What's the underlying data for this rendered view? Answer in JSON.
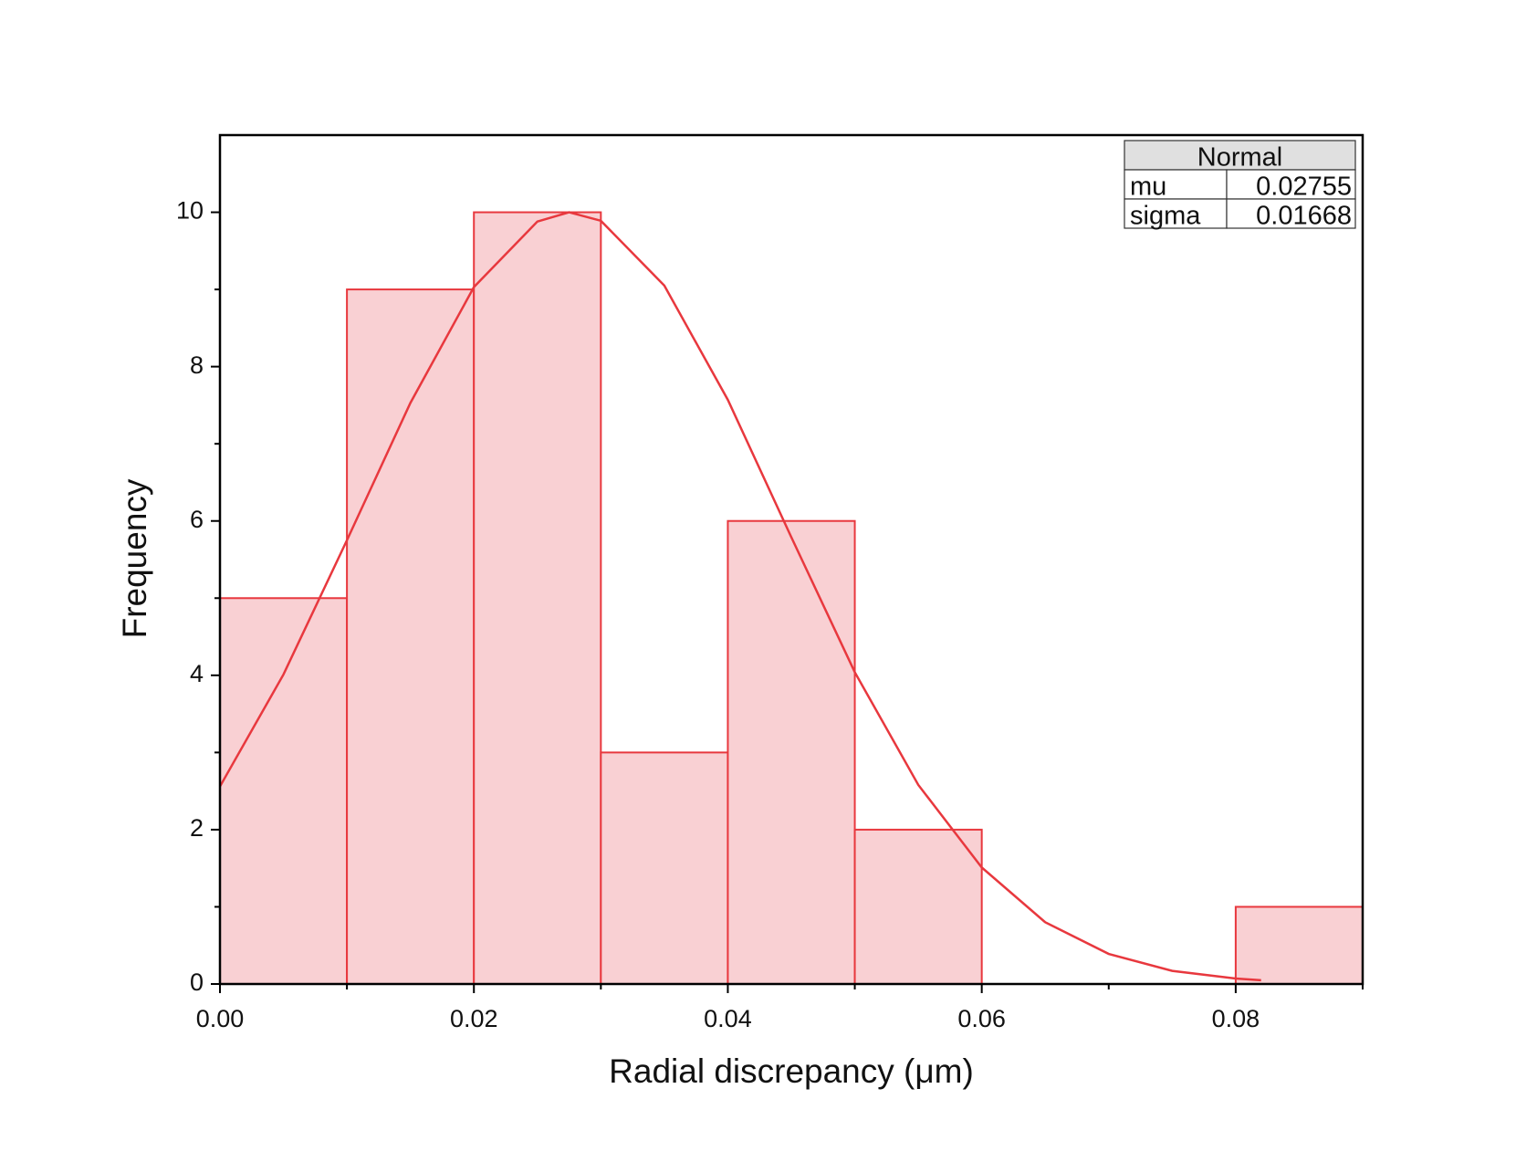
{
  "chart_data": {
    "type": "histogram",
    "x_label": "Radial discrepancy (μm)",
    "y_label": "Frequency",
    "bins": [
      0,
      0.01,
      0.02,
      0.03,
      0.04,
      0.05,
      0.06,
      0.07,
      0.08,
      0.09
    ],
    "counts": [
      5,
      9,
      10,
      3,
      6,
      2,
      0,
      0,
      1
    ],
    "color": "#f9d0d3",
    "edge_color": "#e8383e",
    "xlim": [
      0,
      0.09
    ],
    "ylim": [
      0,
      11
    ],
    "xticks": [
      {
        "value": 0,
        "label": "0.00"
      },
      0.02,
      0.04,
      0.06,
      0.08
    ],
    "yticks": [
      0,
      2,
      4,
      6,
      8,
      10
    ],
    "x_minor_ticks": [
      0.01,
      0.03,
      0.05,
      0.07,
      0.09
    ],
    "y_minor_ticks": [
      1,
      3,
      5,
      7,
      9
    ],
    "fit": {
      "name": "Normal",
      "color": "#e8383e",
      "x": [
        0,
        0.005,
        0.01,
        0.015,
        0.02,
        0.025,
        0.0275,
        0.03,
        0.035,
        0.04,
        0.045,
        0.05,
        0.055,
        0.06,
        0.065,
        0.07,
        0.075,
        0.08,
        0.082
      ],
      "y": [
        2.56,
        4.01,
        5.75,
        7.53,
        9.03,
        9.88,
        10.0,
        9.89,
        9.05,
        7.57,
        5.79,
        4.04,
        2.58,
        1.51,
        0.8,
        0.39,
        0.17,
        0.071,
        0.049
      ]
    },
    "fit_table": {
      "rows": [
        [
          "mu",
          0.02755
        ],
        [
          "sigma",
          0.01668
        ]
      ]
    }
  }
}
